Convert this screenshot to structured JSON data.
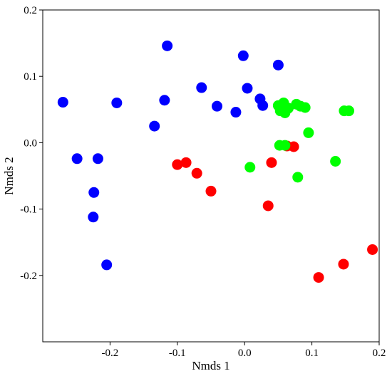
{
  "chart_data": {
    "type": "scatter",
    "title": "",
    "xlabel": "Nmds 1",
    "ylabel": "Nmds 2",
    "xlim": [
      -0.3,
      0.2
    ],
    "ylim": [
      -0.3,
      0.2
    ],
    "xticks": [
      {
        "value": -0.2,
        "label": "-0.2"
      },
      {
        "value": -0.1,
        "label": "-0.1"
      },
      {
        "value": 0.0,
        "label": "0.0"
      },
      {
        "value": 0.1,
        "label": "0.1"
      },
      {
        "value": 0.2,
        "label": "0.2"
      }
    ],
    "yticks": [
      {
        "value": 0.2,
        "label": "0.2"
      },
      {
        "value": 0.1,
        "label": "0.1"
      },
      {
        "value": 0.0,
        "label": "0.0"
      },
      {
        "value": -0.1,
        "label": "-0.1"
      },
      {
        "value": -0.2,
        "label": "-0.2"
      }
    ],
    "grid": false,
    "legend": "none",
    "series": [
      {
        "color": "#0000ff",
        "points": [
          [
            -0.27,
            0.061
          ],
          [
            -0.249,
            -0.024
          ],
          [
            -0.224,
            -0.075
          ],
          [
            -0.225,
            -0.112
          ],
          [
            -0.218,
            -0.024
          ],
          [
            -0.205,
            -0.184
          ],
          [
            -0.19,
            0.06
          ],
          [
            -0.115,
            0.146
          ],
          [
            -0.119,
            0.064
          ],
          [
            -0.134,
            0.025
          ],
          [
            -0.064,
            0.083
          ],
          [
            -0.041,
            0.055
          ],
          [
            -0.002,
            0.131
          ],
          [
            0.004,
            0.082
          ],
          [
            -0.013,
            0.046
          ],
          [
            0.023,
            0.066
          ],
          [
            0.027,
            0.056
          ],
          [
            0.05,
            0.117
          ]
        ]
      },
      {
        "color": "#ff0000",
        "points": [
          [
            -0.1,
            -0.033
          ],
          [
            -0.087,
            -0.03
          ],
          [
            -0.071,
            -0.046
          ],
          [
            -0.05,
            -0.073
          ],
          [
            0.035,
            -0.095
          ],
          [
            0.04,
            -0.03
          ],
          [
            0.063,
            -0.005
          ],
          [
            0.073,
            -0.006
          ],
          [
            0.11,
            -0.203
          ],
          [
            0.147,
            -0.183
          ],
          [
            0.19,
            -0.161
          ]
        ]
      },
      {
        "color": "#00ff00",
        "points": [
          [
            0.008,
            -0.037
          ],
          [
            0.05,
            0.056
          ],
          [
            0.053,
            0.048
          ],
          [
            0.058,
            0.06
          ],
          [
            0.06,
            0.045
          ],
          [
            0.052,
            -0.004
          ],
          [
            0.06,
            -0.004
          ],
          [
            0.065,
            0.052
          ],
          [
            0.077,
            0.058
          ],
          [
            0.083,
            0.055
          ],
          [
            0.09,
            0.053
          ],
          [
            0.095,
            0.015
          ],
          [
            0.079,
            -0.052
          ],
          [
            0.135,
            -0.028
          ],
          [
            0.148,
            0.048
          ],
          [
            0.155,
            0.048
          ]
        ]
      }
    ]
  }
}
